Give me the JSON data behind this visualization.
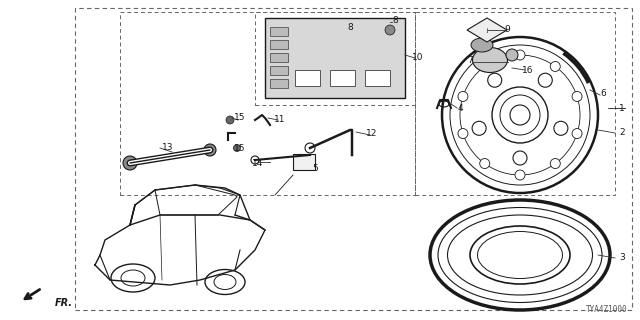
{
  "bg_color": "#ffffff",
  "line_color": "#1a1a1a",
  "gray_color": "#555555",
  "diagram_code": "TYA4Z1000",
  "figsize": [
    6.4,
    3.2
  ],
  "dpi": 100
}
